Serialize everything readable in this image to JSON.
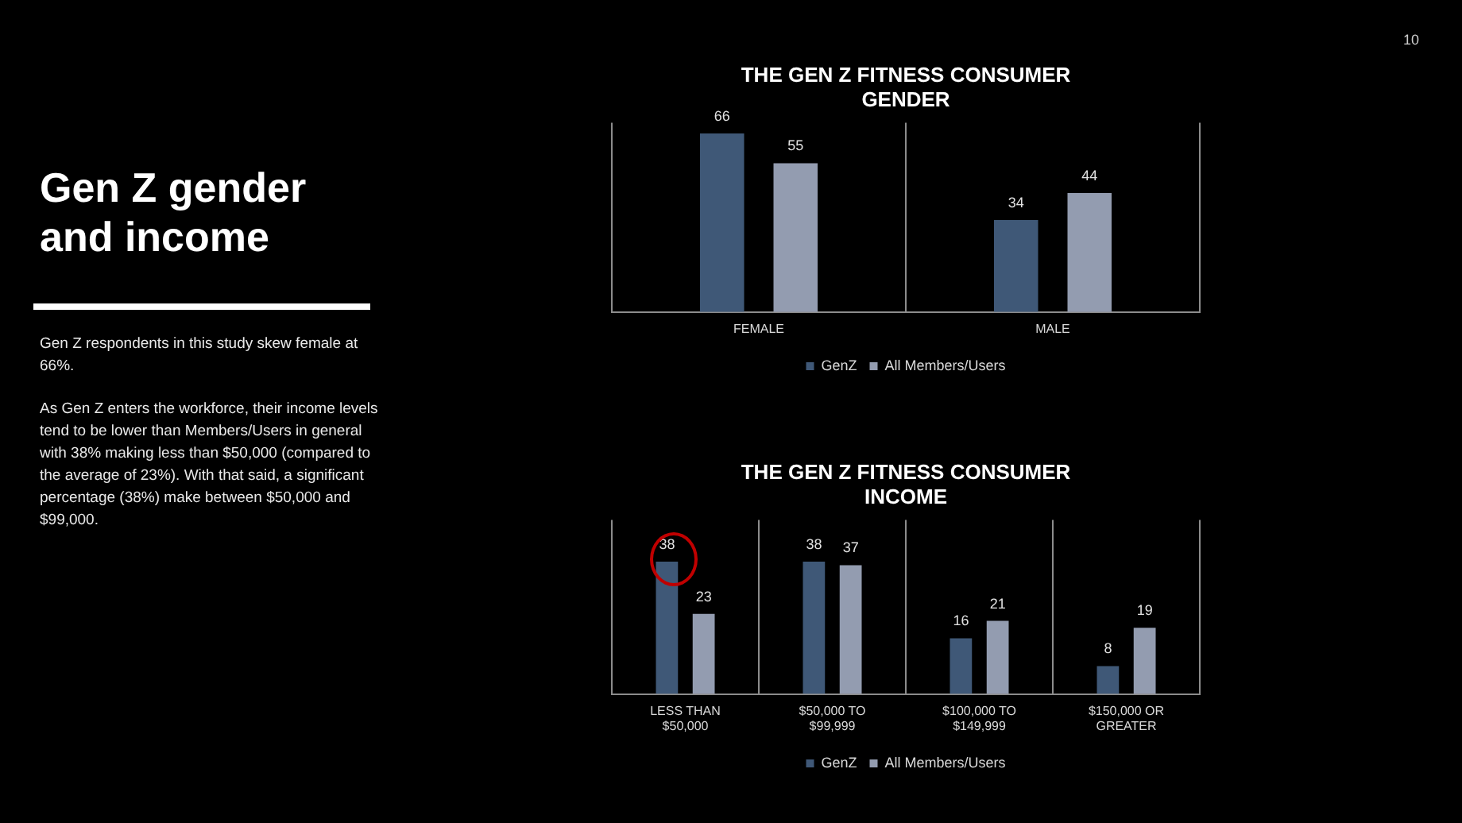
{
  "chart_data": [
    {
      "type": "other",
      "title": "Gen Z gender and income",
      "annotations": [
        "Gen Z respondents in this study skew female at 66%.",
        "As Gen Z enters the workforce, their income levels tend to be lower than Members/Users in general with 38% making less than $50,000 (compared to the average of 23%). With that said, a significant percentage (38%) make between $50,000 and $99,000.",
        "10"
      ]
    },
    {
      "type": "bar",
      "title": "THE GEN Z FITNESS CONSUMER GENDER",
      "categories": [
        "FEMALE",
        "MALE"
      ],
      "series": [
        {
          "name": "GenZ",
          "color": "#3f5877",
          "values": [
            66,
            34
          ]
        },
        {
          "name": "All Members/Users",
          "color": "#939cb0",
          "values": [
            55,
            44
          ]
        }
      ],
      "data_labels": true,
      "grid": "x",
      "legend": "bottom",
      "tick_labels": "x"
    },
    {
      "type": "bar",
      "title": "THE GEN Z FITNESS CONSUMER INCOME",
      "categories": [
        "LESS THAN $50,000",
        "$50,000 TO $99,999",
        "$100,000 TO $149,999",
        "$150,000 OR GREATER"
      ],
      "series": [
        {
          "name": "GenZ",
          "color": "#3f5877",
          "values": [
            38,
            38,
            16,
            8
          ]
        },
        {
          "name": "All Members/Users",
          "color": "#939cb0",
          "values": [
            23,
            37,
            21,
            19
          ]
        }
      ],
      "data_labels": true,
      "grid": "x",
      "legend": "bottom",
      "tick_labels": "x"
    }
  ]
}
